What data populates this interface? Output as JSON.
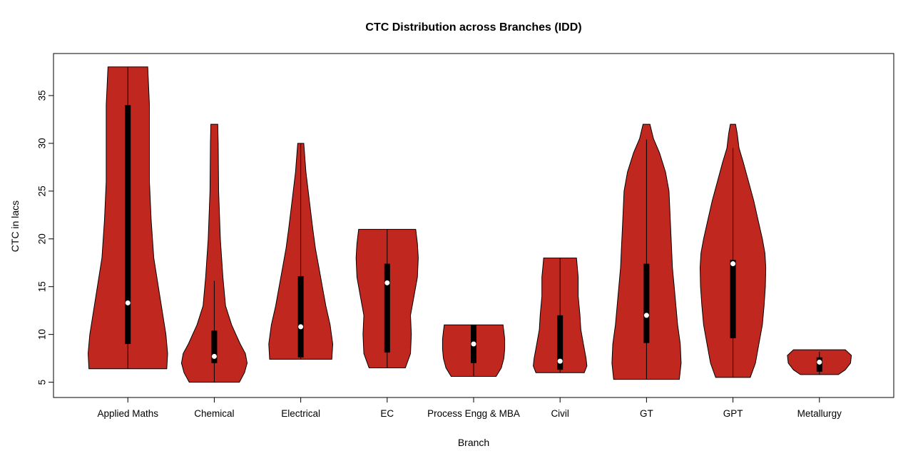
{
  "chart_data": {
    "type": "violin",
    "title": "CTC Distribution across Branches (IDD)",
    "xlabel": "Branch",
    "ylabel": "CTC in lacs",
    "ylim": [
      3.4,
      39.4
    ],
    "yticks": [
      5,
      10,
      15,
      20,
      25,
      30,
      35
    ],
    "fill_color": "#c0281f",
    "outline_color": "#000000",
    "categories": [
      "Applied Maths",
      "Chemical",
      "Electrical",
      "EC",
      "Process Engg & MBA",
      "Civil",
      "GT",
      "GPT",
      "Metallurgy"
    ],
    "violins": [
      {
        "branch": "Applied Maths",
        "min": 6.4,
        "max": 38,
        "q1": 9,
        "median": 13.3,
        "q3": 34,
        "whisker_low": 6.4,
        "whisker_high": 38,
        "shape": [
          [
            6.4,
            0.45
          ],
          [
            8,
            0.46
          ],
          [
            10,
            0.44
          ],
          [
            14,
            0.37
          ],
          [
            18,
            0.3
          ],
          [
            22,
            0.27
          ],
          [
            26,
            0.25
          ],
          [
            30,
            0.25
          ],
          [
            34,
            0.25
          ],
          [
            38,
            0.23
          ]
        ]
      },
      {
        "branch": "Chemical",
        "min": 5,
        "max": 32,
        "q1": 7,
        "median": 7.7,
        "q3": 10.4,
        "whisker_low": 5,
        "whisker_high": 15.6,
        "shape": [
          [
            5,
            0.29
          ],
          [
            6,
            0.35
          ],
          [
            7,
            0.38
          ],
          [
            8,
            0.36
          ],
          [
            9,
            0.3
          ],
          [
            10,
            0.25
          ],
          [
            11,
            0.2
          ],
          [
            13,
            0.13
          ],
          [
            16,
            0.1
          ],
          [
            20,
            0.07
          ],
          [
            25,
            0.05
          ],
          [
            30,
            0.045
          ],
          [
            32,
            0.04
          ]
        ]
      },
      {
        "branch": "Electrical",
        "min": 7.4,
        "max": 30,
        "q1": 7.6,
        "median": 10.8,
        "q3": 16.1,
        "whisker_low": 7.4,
        "whisker_high": 30,
        "shape": [
          [
            7.4,
            0.36
          ],
          [
            9,
            0.37
          ],
          [
            11,
            0.34
          ],
          [
            13,
            0.29
          ],
          [
            15,
            0.25
          ],
          [
            17,
            0.21
          ],
          [
            19,
            0.17
          ],
          [
            21,
            0.14
          ],
          [
            24,
            0.1
          ],
          [
            27,
            0.06
          ],
          [
            30,
            0.035
          ]
        ]
      },
      {
        "branch": "EC",
        "min": 6.5,
        "max": 21,
        "q1": 8.1,
        "median": 15.4,
        "q3": 17.4,
        "whisker_low": 6.5,
        "whisker_high": 21,
        "shape": [
          [
            6.5,
            0.21
          ],
          [
            8,
            0.27
          ],
          [
            10,
            0.28
          ],
          [
            12,
            0.27
          ],
          [
            14,
            0.31
          ],
          [
            16,
            0.35
          ],
          [
            18,
            0.36
          ],
          [
            19.5,
            0.35
          ],
          [
            21,
            0.33
          ]
        ]
      },
      {
        "branch": "Process Engg & MBA",
        "min": 5.6,
        "max": 11,
        "q1": 7,
        "median": 9,
        "q3": 11,
        "whisker_low": 5.6,
        "whisker_high": 11,
        "shape": [
          [
            5.6,
            0.26
          ],
          [
            6.5,
            0.32
          ],
          [
            7.5,
            0.35
          ],
          [
            8.5,
            0.36
          ],
          [
            9.5,
            0.36
          ],
          [
            10.3,
            0.35
          ],
          [
            11,
            0.34
          ]
        ]
      },
      {
        "branch": "Civil",
        "min": 6,
        "max": 18,
        "q1": 6.3,
        "median": 7.2,
        "q3": 12,
        "whisker_low": 6,
        "whisker_high": 18,
        "shape": [
          [
            6,
            0.28
          ],
          [
            6.7,
            0.31
          ],
          [
            7.5,
            0.3
          ],
          [
            9,
            0.27
          ],
          [
            10.5,
            0.24
          ],
          [
            12,
            0.23
          ],
          [
            14,
            0.21
          ],
          [
            16,
            0.21
          ],
          [
            17,
            0.2
          ],
          [
            18,
            0.19
          ]
        ]
      },
      {
        "branch": "GT",
        "min": 5.3,
        "max": 32,
        "q1": 9.1,
        "median": 12,
        "q3": 17.4,
        "whisker_low": 5.3,
        "whisker_high": 30.4,
        "shape": [
          [
            5.3,
            0.38
          ],
          [
            7,
            0.4
          ],
          [
            9,
            0.39
          ],
          [
            11,
            0.36
          ],
          [
            13,
            0.34
          ],
          [
            15,
            0.32
          ],
          [
            17,
            0.3
          ],
          [
            19,
            0.29
          ],
          [
            21,
            0.28
          ],
          [
            23,
            0.27
          ],
          [
            25,
            0.26
          ],
          [
            27,
            0.22
          ],
          [
            29,
            0.15
          ],
          [
            30.5,
            0.08
          ],
          [
            32,
            0.04
          ]
        ]
      },
      {
        "branch": "GPT",
        "min": 5.5,
        "max": 32,
        "q1": 9.6,
        "median": 17.4,
        "q3": 17.8,
        "whisker_low": 5.5,
        "whisker_high": 29.5,
        "shape": [
          [
            5.5,
            0.2
          ],
          [
            7,
            0.26
          ],
          [
            9,
            0.3
          ],
          [
            11,
            0.34
          ],
          [
            13,
            0.36
          ],
          [
            15,
            0.375
          ],
          [
            17,
            0.38
          ],
          [
            18.5,
            0.37
          ],
          [
            20,
            0.34
          ],
          [
            22,
            0.29
          ],
          [
            24,
            0.24
          ],
          [
            26,
            0.18
          ],
          [
            28,
            0.12
          ],
          [
            29.5,
            0.07
          ],
          [
            31,
            0.05
          ],
          [
            32,
            0.03
          ]
        ]
      },
      {
        "branch": "Metallurgy",
        "min": 5.8,
        "max": 8.4,
        "q1": 6.1,
        "median": 7.1,
        "q3": 7.6,
        "whisker_low": 5.8,
        "whisker_high": 8.2,
        "shape": [
          [
            5.8,
            0.22
          ],
          [
            6.3,
            0.3
          ],
          [
            7,
            0.36
          ],
          [
            7.8,
            0.37
          ],
          [
            8.4,
            0.3
          ]
        ]
      }
    ]
  }
}
